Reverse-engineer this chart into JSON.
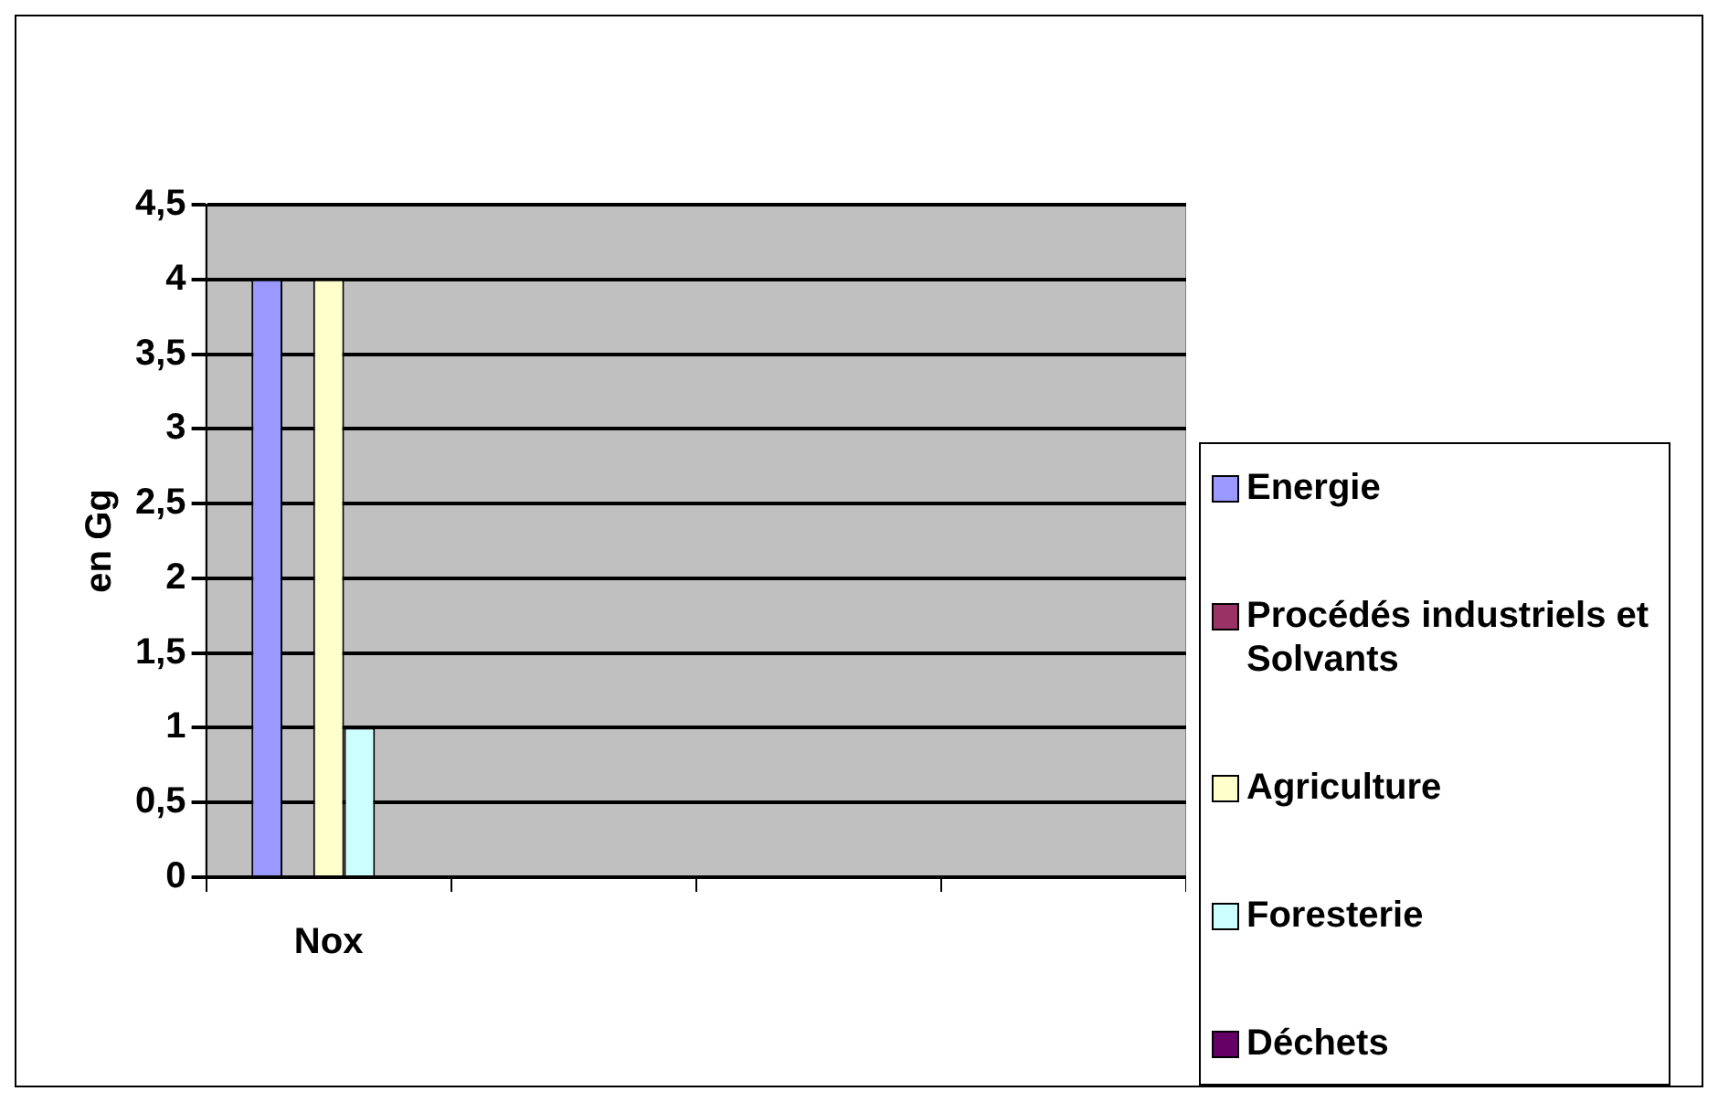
{
  "chart_data": {
    "type": "bar",
    "ylabel": "en Gg",
    "categories": [
      "Nox",
      null,
      null,
      null
    ],
    "series": [
      {
        "name": "Energie",
        "color": "#9999ff",
        "values": [
          4,
          null,
          null,
          null
        ]
      },
      {
        "name": "Procédés industriels et Solvants",
        "color": "#993366",
        "values": [
          0,
          null,
          null,
          null
        ]
      },
      {
        "name": "Agriculture",
        "color": "#ffffcc",
        "values": [
          4,
          null,
          null,
          null
        ]
      },
      {
        "name": "Foresterie",
        "color": "#ccffff",
        "values": [
          1,
          null,
          null,
          null
        ]
      },
      {
        "name": "Déchets",
        "color": "#660066",
        "values": [
          0,
          null,
          null,
          null
        ]
      }
    ],
    "ylim": [
      0,
      4.5
    ],
    "yticks": [
      0,
      {
        "value": 0.5,
        "label": "0,5"
      },
      1,
      {
        "value": 1.5,
        "label": "1,5"
      },
      2,
      {
        "value": 2.5,
        "label": "2,5"
      },
      3,
      {
        "value": 3.5,
        "label": "3,5"
      },
      4,
      {
        "value": 4.5,
        "label": "4,5"
      }
    ],
    "grid": "y",
    "legend": "right"
  }
}
